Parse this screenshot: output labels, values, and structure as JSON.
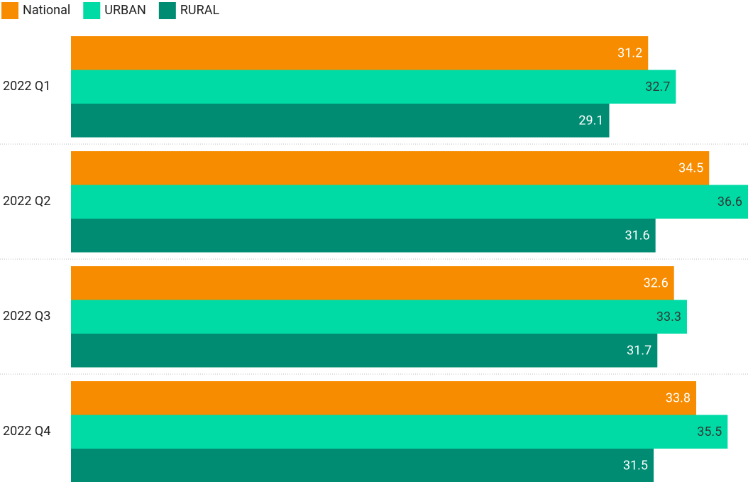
{
  "chart_data": {
    "type": "hbar",
    "categories": [
      "2022 Q1",
      "2022 Q2",
      "2022 Q3",
      "2022 Q4"
    ],
    "series": [
      {
        "name": "National",
        "color": "#f88c00",
        "label_color": "#ffffff",
        "values": [
          31.2,
          34.5,
          32.6,
          33.8
        ]
      },
      {
        "name": "URBAN",
        "color": "#00dba6",
        "label_color": "#2f3b37",
        "values": [
          32.7,
          36.6,
          33.3,
          35.5
        ]
      },
      {
        "name": "RURAL",
        "color": "#008c72",
        "label_color": "#ffffff",
        "values": [
          29.1,
          31.6,
          31.7,
          31.5
        ]
      }
    ],
    "legend": "top-left"
  }
}
